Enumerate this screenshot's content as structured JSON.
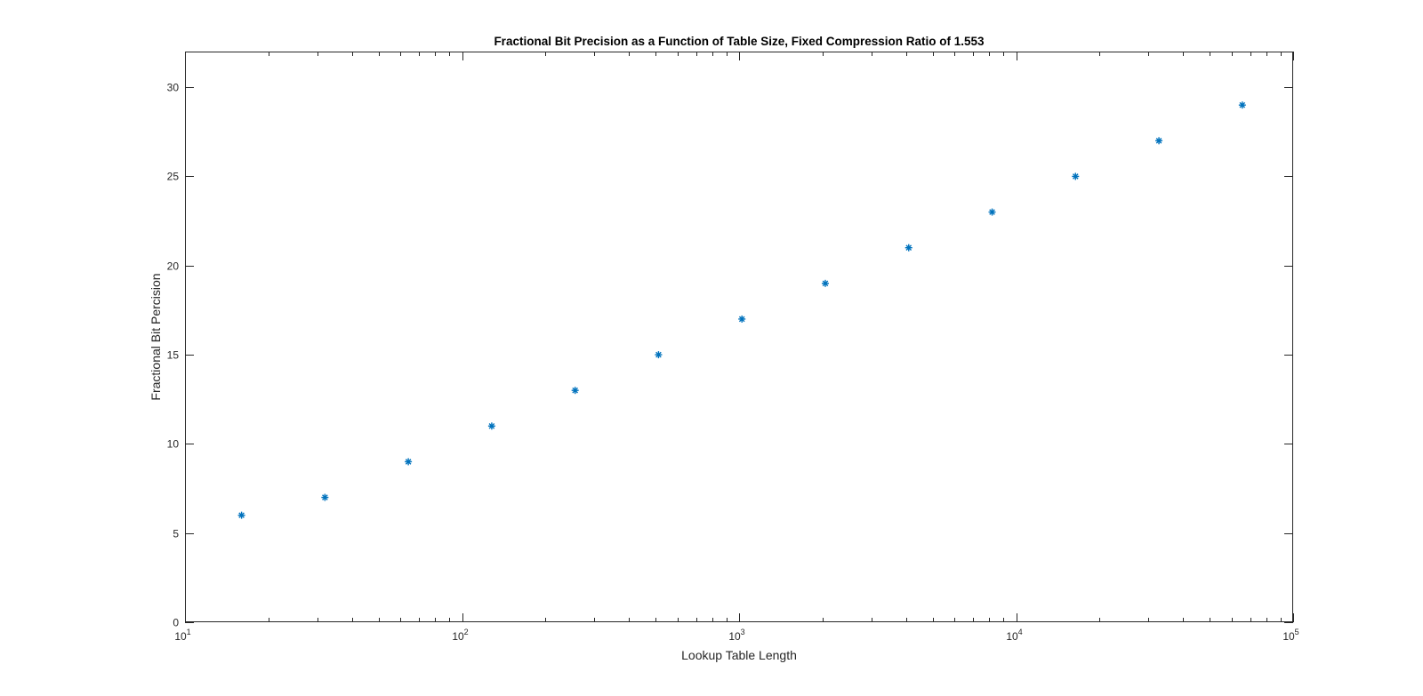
{
  "chart_data": {
    "type": "scatter",
    "title": "Fractional Bit Precision as a Function of Table Size, Fixed Compression Ratio of 1.553",
    "xlabel": "Lookup Table Length",
    "ylabel": "Fractional Bit Percision",
    "x_scale": "log",
    "xlim": [
      10,
      100000
    ],
    "ylim": [
      0,
      32
    ],
    "x_ticks": [
      {
        "value": 10,
        "base": "10",
        "exp": "1"
      },
      {
        "value": 100,
        "base": "10",
        "exp": "2"
      },
      {
        "value": 1000,
        "base": "10",
        "exp": "3"
      },
      {
        "value": 10000,
        "base": "10",
        "exp": "4"
      },
      {
        "value": 100000,
        "base": "10",
        "exp": "5"
      }
    ],
    "y_ticks": [
      "0",
      "5",
      "10",
      "15",
      "20",
      "25",
      "30"
    ],
    "grid": false,
    "marker": "asterisk",
    "marker_color": "#0072BD",
    "series": [
      {
        "x": [
          16,
          32,
          64,
          128,
          256,
          512,
          1024,
          2048,
          4096,
          8192,
          16384,
          32768,
          65536
        ],
        "y": [
          6,
          7,
          9,
          11,
          13,
          15,
          17,
          19,
          21,
          23,
          25,
          27,
          29
        ]
      }
    ]
  }
}
